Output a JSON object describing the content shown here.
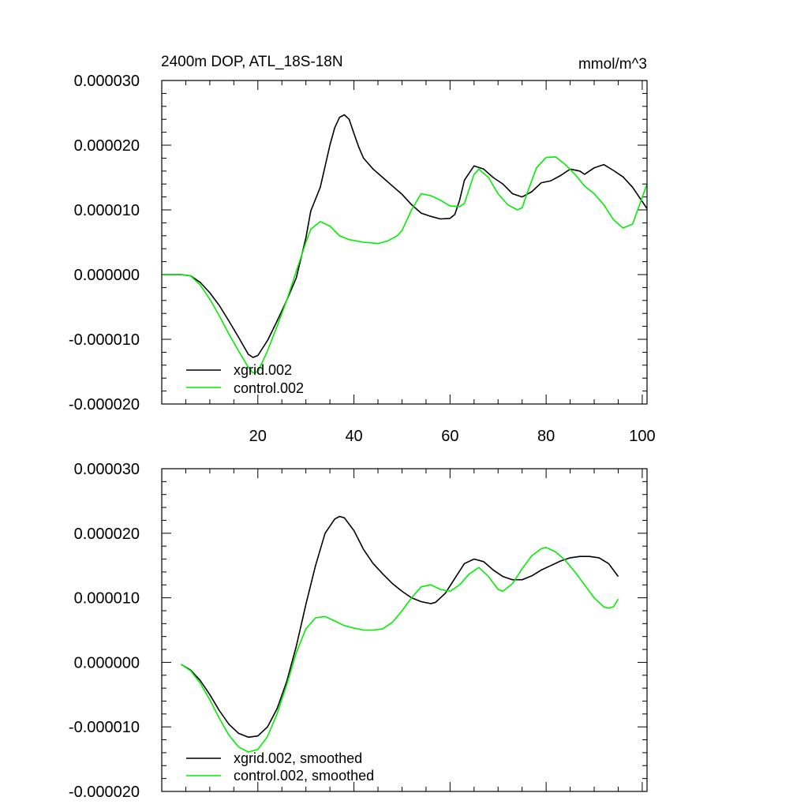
{
  "chart_data": [
    {
      "type": "line",
      "title": "2400m DOP, ATL_18S-18N",
      "units": "mmol/m^3",
      "xlim": [
        0,
        101
      ],
      "ylim": [
        -2e-05,
        3e-05
      ],
      "x_ticks": [
        20,
        40,
        60,
        80,
        100
      ],
      "x_tick_labels": [
        "20",
        "40",
        "60",
        "80",
        "100"
      ],
      "y_ticks": [
        -2e-05,
        -1e-05,
        0,
        1e-05,
        2e-05,
        3e-05
      ],
      "y_tick_labels": [
        "-0.000020",
        "-0.000010",
        "0.000000",
        "0.000010",
        "0.000020",
        "0.000030"
      ],
      "legend_position": "bottom-left",
      "series": [
        {
          "name": "xgrid.002",
          "color": "#000000",
          "points": [
            [
              0,
              0
            ],
            [
              4,
              0
            ],
            [
              6,
              -2e-07
            ],
            [
              8,
              -1.2e-06
            ],
            [
              10,
              -2.8e-06
            ],
            [
              12,
              -4.8e-06
            ],
            [
              14,
              -7.2e-06
            ],
            [
              16,
              -9.7e-06
            ],
            [
              18,
              -1.23e-05
            ],
            [
              19,
              -1.28e-05
            ],
            [
              20,
              -1.25e-05
            ],
            [
              22,
              -1.02e-05
            ],
            [
              24,
              -7.2e-06
            ],
            [
              26,
              -4e-06
            ],
            [
              28,
              -5e-07
            ],
            [
              30,
              5.7e-06
            ],
            [
              31,
              9.8e-06
            ],
            [
              33,
              1.35e-05
            ],
            [
              35,
              2e-05
            ],
            [
              36,
              2.27e-05
            ],
            [
              37,
              2.43e-05
            ],
            [
              38,
              2.47e-05
            ],
            [
              39,
              2.4e-05
            ],
            [
              40,
              2.18e-05
            ],
            [
              41,
              1.97e-05
            ],
            [
              42,
              1.8e-05
            ],
            [
              44,
              1.63e-05
            ],
            [
              46,
              1.5e-05
            ],
            [
              48,
              1.37e-05
            ],
            [
              50,
              1.24e-05
            ],
            [
              52,
              1.08e-05
            ],
            [
              54,
              9.5e-06
            ],
            [
              56,
              9e-06
            ],
            [
              58,
              8.6e-06
            ],
            [
              60,
              8.7e-06
            ],
            [
              61,
              9.3e-06
            ],
            [
              62,
              1.15e-05
            ],
            [
              63,
              1.46e-05
            ],
            [
              65,
              1.68e-05
            ],
            [
              67,
              1.63e-05
            ],
            [
              69,
              1.5e-05
            ],
            [
              71,
              1.4e-05
            ],
            [
              73,
              1.25e-05
            ],
            [
              75,
              1.2e-05
            ],
            [
              77,
              1.28e-05
            ],
            [
              79,
              1.42e-05
            ],
            [
              81,
              1.45e-05
            ],
            [
              83,
              1.53e-05
            ],
            [
              85,
              1.63e-05
            ],
            [
              87,
              1.6e-05
            ],
            [
              88,
              1.55e-05
            ],
            [
              90,
              1.65e-05
            ],
            [
              92,
              1.7e-05
            ],
            [
              94,
              1.61e-05
            ],
            [
              96,
              1.51e-05
            ],
            [
              98,
              1.35e-05
            ],
            [
              101,
              1.02e-05
            ]
          ]
        },
        {
          "name": "control.002",
          "color": "#00ee00",
          "points": [
            [
              0,
              0
            ],
            [
              4,
              0
            ],
            [
              6,
              -2e-07
            ],
            [
              8,
              -1.6e-06
            ],
            [
              10,
              -3.8e-06
            ],
            [
              12,
              -6.4e-06
            ],
            [
              14,
              -9.2e-06
            ],
            [
              16,
              -1.18e-05
            ],
            [
              18,
              -1.43e-05
            ],
            [
              19,
              -1.52e-05
            ],
            [
              20,
              -1.5e-05
            ],
            [
              22,
              -1.18e-05
            ],
            [
              24,
              -8e-06
            ],
            [
              26,
              -4e-06
            ],
            [
              28,
              5e-07
            ],
            [
              30,
              5e-06
            ],
            [
              31,
              7e-06
            ],
            [
              33,
              8.2e-06
            ],
            [
              35,
              7.5e-06
            ],
            [
              37,
              6e-06
            ],
            [
              39,
              5.4e-06
            ],
            [
              42,
              5e-06
            ],
            [
              45,
              4.8e-06
            ],
            [
              47,
              5.2e-06
            ],
            [
              49,
              6e-06
            ],
            [
              50,
              6.8e-06
            ],
            [
              52,
              1e-05
            ],
            [
              54,
              1.25e-05
            ],
            [
              56,
              1.22e-05
            ],
            [
              58,
              1.15e-05
            ],
            [
              60,
              1.06e-05
            ],
            [
              62,
              1.05e-05
            ],
            [
              63,
              1.1e-05
            ],
            [
              65,
              1.55e-05
            ],
            [
              66,
              1.63e-05
            ],
            [
              68,
              1.5e-05
            ],
            [
              70,
              1.25e-05
            ],
            [
              72,
              1.08e-05
            ],
            [
              74,
              1e-05
            ],
            [
              75,
              1.03e-05
            ],
            [
              76,
              1.25e-05
            ],
            [
              78,
              1.65e-05
            ],
            [
              80,
              1.81e-05
            ],
            [
              82,
              1.82e-05
            ],
            [
              84,
              1.7e-05
            ],
            [
              86,
              1.55e-05
            ],
            [
              88,
              1.37e-05
            ],
            [
              90,
              1.25e-05
            ],
            [
              92,
              1.08e-05
            ],
            [
              94,
              8.5e-06
            ],
            [
              96,
              7.2e-06
            ],
            [
              98,
              7.8e-06
            ],
            [
              101,
              1.4e-05
            ]
          ]
        }
      ]
    },
    {
      "type": "line",
      "xlim": [
        0,
        101
      ],
      "ylim": [
        -2e-05,
        3e-05
      ],
      "x_ticks": [
        20,
        40,
        60,
        80,
        100
      ],
      "y_ticks": [
        -2e-05,
        -1e-05,
        0,
        1e-05,
        2e-05,
        3e-05
      ],
      "y_tick_labels": [
        "-0.000020",
        "-0.000010",
        "0.000000",
        "0.000010",
        "0.000020",
        "0.000030"
      ],
      "legend_position": "bottom-left",
      "series": [
        {
          "name": "xgrid.002, smoothed",
          "color": "#000000",
          "points": [
            [
              4,
              -3e-07
            ],
            [
              6,
              -1.2e-06
            ],
            [
              8,
              -2.8e-06
            ],
            [
              10,
              -5e-06
            ],
            [
              12,
              -7.5e-06
            ],
            [
              14,
              -9.6e-06
            ],
            [
              16,
              -1.1e-05
            ],
            [
              18,
              -1.16e-05
            ],
            [
              20,
              -1.14e-05
            ],
            [
              22,
              -1e-05
            ],
            [
              24,
              -7.2e-06
            ],
            [
              26,
              -3e-06
            ],
            [
              28,
              2.5e-06
            ],
            [
              30,
              9e-06
            ],
            [
              32,
              1.5e-05
            ],
            [
              34,
              2e-05
            ],
            [
              36,
              2.22e-05
            ],
            [
              37,
              2.26e-05
            ],
            [
              38,
              2.24e-05
            ],
            [
              40,
              2.04e-05
            ],
            [
              42,
              1.75e-05
            ],
            [
              44,
              1.53e-05
            ],
            [
              46,
              1.37e-05
            ],
            [
              48,
              1.22e-05
            ],
            [
              50,
              1.1e-05
            ],
            [
              52,
              1e-05
            ],
            [
              54,
              9.4e-06
            ],
            [
              56,
              9.1e-06
            ],
            [
              57,
              9.3e-06
            ],
            [
              59,
              1.07e-05
            ],
            [
              61,
              1.3e-05
            ],
            [
              63,
              1.53e-05
            ],
            [
              65,
              1.6e-05
            ],
            [
              67,
              1.56e-05
            ],
            [
              69,
              1.43e-05
            ],
            [
              71,
              1.33e-05
            ],
            [
              73,
              1.28e-05
            ],
            [
              75,
              1.28e-05
            ],
            [
              77,
              1.34e-05
            ],
            [
              79,
              1.43e-05
            ],
            [
              81,
              1.5e-05
            ],
            [
              83,
              1.57e-05
            ],
            [
              85,
              1.62e-05
            ],
            [
              87,
              1.64e-05
            ],
            [
              89,
              1.64e-05
            ],
            [
              91,
              1.62e-05
            ],
            [
              93,
              1.53e-05
            ],
            [
              95,
              1.33e-05
            ]
          ]
        },
        {
          "name": "control.002, smoothed",
          "color": "#00ee00",
          "points": [
            [
              4,
              -3e-07
            ],
            [
              6,
              -1.3e-06
            ],
            [
              8,
              -3.2e-06
            ],
            [
              10,
              -5.8e-06
            ],
            [
              12,
              -8.7e-06
            ],
            [
              14,
              -1.13e-05
            ],
            [
              16,
              -1.31e-05
            ],
            [
              18,
              -1.39e-05
            ],
            [
              20,
              -1.35e-05
            ],
            [
              22,
              -1.15e-05
            ],
            [
              24,
              -8e-06
            ],
            [
              26,
              -3.5e-06
            ],
            [
              28,
              1.5e-06
            ],
            [
              30,
              5.2e-06
            ],
            [
              32,
              6.9e-06
            ],
            [
              34,
              7.1e-06
            ],
            [
              36,
              6.4e-06
            ],
            [
              38,
              5.7e-06
            ],
            [
              40,
              5.3e-06
            ],
            [
              42,
              5e-06
            ],
            [
              44,
              5e-06
            ],
            [
              46,
              5.2e-06
            ],
            [
              48,
              6.2e-06
            ],
            [
              50,
              8e-06
            ],
            [
              52,
              1e-05
            ],
            [
              54,
              1.17e-05
            ],
            [
              56,
              1.2e-05
            ],
            [
              58,
              1.13e-05
            ],
            [
              60,
              1.1e-05
            ],
            [
              62,
              1.2e-05
            ],
            [
              64,
              1.37e-05
            ],
            [
              66,
              1.47e-05
            ],
            [
              68,
              1.33e-05
            ],
            [
              70,
              1.13e-05
            ],
            [
              71,
              1.1e-05
            ],
            [
              73,
              1.22e-05
            ],
            [
              75,
              1.45e-05
            ],
            [
              77,
              1.65e-05
            ],
            [
              79,
              1.76e-05
            ],
            [
              80,
              1.78e-05
            ],
            [
              82,
              1.71e-05
            ],
            [
              84,
              1.58e-05
            ],
            [
              86,
              1.4e-05
            ],
            [
              88,
              1.2e-05
            ],
            [
              90,
              1e-05
            ],
            [
              92,
              8.6e-06
            ],
            [
              93,
              8.4e-06
            ],
            [
              94,
              8.6e-06
            ],
            [
              95,
              9.8e-06
            ]
          ]
        }
      ]
    }
  ]
}
